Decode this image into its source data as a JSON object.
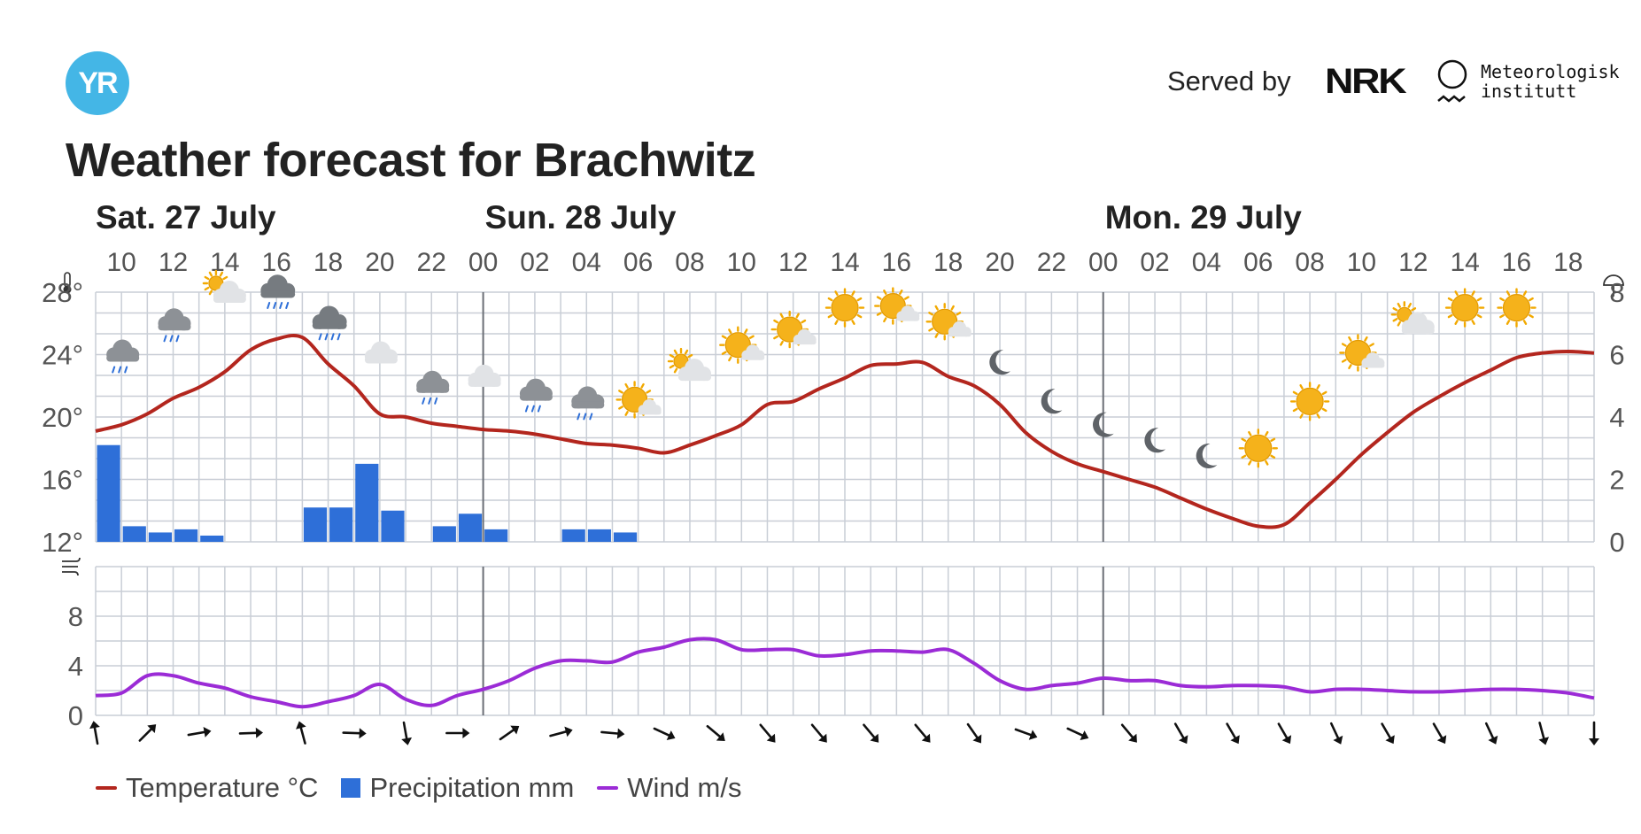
{
  "header": {
    "logo_text": "YR",
    "served_by": "Served by",
    "nrk": "NRK",
    "met_line1": "Meteorologisk",
    "met_line2": "institutt",
    "title": "Weather forecast for Brachwitz"
  },
  "colors": {
    "temperature": "#b3261e",
    "precipitation": "#2e6fd8",
    "wind": "#9b2bd6",
    "grid": "#c9ced6",
    "day_divider": "#6b6f76"
  },
  "legend": {
    "temperature": "Temperature °C",
    "precipitation": "Precipitation mm",
    "wind": "Wind m/s"
  },
  "chart_data": {
    "type": "line",
    "days": [
      {
        "label": "Sat. 27 July",
        "start_hour": 9
      },
      {
        "label": "Sun. 28 July",
        "start_hour": 24
      },
      {
        "label": "Mon. 29 July",
        "start_hour": 48
      }
    ],
    "hour_range": [
      9,
      67
    ],
    "hour_tick_labels": [
      "10",
      "12",
      "14",
      "16",
      "18",
      "20",
      "22",
      "00",
      "02",
      "04",
      "06",
      "08",
      "10",
      "12",
      "14",
      "16",
      "18",
      "20",
      "22",
      "00",
      "02",
      "04",
      "06",
      "08",
      "10",
      "12",
      "14",
      "16",
      "18"
    ],
    "temperature": {
      "ylim": [
        12,
        28
      ],
      "tick_labels": [
        "28°",
        "24°",
        "20°",
        "16°",
        "12°"
      ],
      "tick_values": [
        28,
        24,
        20,
        16,
        12
      ],
      "x": [
        9,
        10,
        11,
        12,
        13,
        14,
        15,
        16,
        17,
        18,
        19,
        20,
        21,
        22,
        23,
        24,
        25,
        26,
        27,
        28,
        29,
        30,
        31,
        32,
        33,
        34,
        35,
        36,
        37,
        38,
        39,
        40,
        41,
        42,
        43,
        44,
        45,
        46,
        47,
        48,
        49,
        50,
        51,
        52,
        53,
        54,
        55,
        56,
        57,
        58,
        59,
        60,
        61,
        62,
        63,
        64,
        65,
        66,
        67
      ],
      "values": [
        19.1,
        19.5,
        20.2,
        21.2,
        21.9,
        22.9,
        24.3,
        25.0,
        25.1,
        23.4,
        22.0,
        20.2,
        20.0,
        19.6,
        19.4,
        19.2,
        19.1,
        18.9,
        18.6,
        18.3,
        18.2,
        18.0,
        17.7,
        18.2,
        18.8,
        19.5,
        20.8,
        21.0,
        21.8,
        22.5,
        23.3,
        23.4,
        23.5,
        22.6,
        22.0,
        20.8,
        19.0,
        17.8,
        17.0,
        16.5,
        16.0,
        15.5,
        14.8,
        14.1,
        13.5,
        13.0,
        13.1,
        14.5,
        16.0,
        17.6,
        19.0,
        20.3,
        21.3,
        22.2,
        23.0,
        23.8,
        24.1,
        24.2,
        24.1
      ]
    },
    "precipitation": {
      "ylim": [
        0,
        8
      ],
      "tick_labels": [
        "8",
        "6",
        "4",
        "2",
        "0"
      ],
      "tick_values": [
        8,
        6,
        4,
        2,
        0
      ],
      "bars": [
        {
          "hour": 9,
          "value": 3.1
        },
        {
          "hour": 10,
          "value": 0.5
        },
        {
          "hour": 11,
          "value": 0.3
        },
        {
          "hour": 12,
          "value": 0.4
        },
        {
          "hour": 13,
          "value": 0.2
        },
        {
          "hour": 17,
          "value": 1.1
        },
        {
          "hour": 18,
          "value": 1.1
        },
        {
          "hour": 19,
          "value": 2.5
        },
        {
          "hour": 20,
          "value": 1.0
        },
        {
          "hour": 22,
          "value": 0.5
        },
        {
          "hour": 23,
          "value": 0.9
        },
        {
          "hour": 24,
          "value": 0.4
        },
        {
          "hour": 27,
          "value": 0.4
        },
        {
          "hour": 28,
          "value": 0.4
        },
        {
          "hour": 29,
          "value": 0.3
        }
      ]
    },
    "wind": {
      "ylim": [
        0,
        12
      ],
      "tick_labels": [
        "8",
        "4",
        "0"
      ],
      "tick_values": [
        8,
        4,
        0
      ],
      "x": [
        9,
        10,
        11,
        12,
        13,
        14,
        15,
        16,
        17,
        18,
        19,
        20,
        21,
        22,
        23,
        24,
        25,
        26,
        27,
        28,
        29,
        30,
        31,
        32,
        33,
        34,
        35,
        36,
        37,
        38,
        39,
        40,
        41,
        42,
        43,
        44,
        45,
        46,
        47,
        48,
        49,
        50,
        51,
        52,
        53,
        54,
        55,
        56,
        57,
        58,
        59,
        60,
        61,
        62,
        63,
        64,
        65,
        66,
        67
      ],
      "values": [
        1.6,
        1.8,
        3.2,
        3.2,
        2.6,
        2.2,
        1.5,
        1.1,
        0.7,
        1.1,
        1.6,
        2.5,
        1.3,
        0.8,
        1.6,
        2.1,
        2.8,
        3.8,
        4.4,
        4.4,
        4.3,
        5.1,
        5.5,
        6.1,
        6.1,
        5.3,
        5.3,
        5.3,
        4.8,
        4.9,
        5.2,
        5.2,
        5.1,
        5.3,
        4.2,
        2.8,
        2.1,
        2.4,
        2.6,
        3.0,
        2.8,
        2.8,
        2.4,
        2.3,
        2.4,
        2.4,
        2.3,
        1.9,
        2.1,
        2.1,
        2.0,
        1.9,
        1.9,
        2.0,
        2.1,
        2.1,
        2.0,
        1.8,
        1.4
      ]
    },
    "weather_symbols": [
      {
        "hour": 10,
        "temp": 24,
        "icon": "cloud-rain-icon"
      },
      {
        "hour": 12,
        "temp": 26,
        "icon": "cloud-rain-icon"
      },
      {
        "hour": 14,
        "temp": 28,
        "icon": "partly-cloudy-icon"
      },
      {
        "hour": 16,
        "temp": 28,
        "icon": "cloud-heavy-rain-icon"
      },
      {
        "hour": 18,
        "temp": 26,
        "icon": "cloud-heavy-rain-icon"
      },
      {
        "hour": 20,
        "temp": 24,
        "icon": "cloud-icon"
      },
      {
        "hour": 22,
        "temp": 22,
        "icon": "cloud-rain-icon"
      },
      {
        "hour": 24,
        "temp": 22.5,
        "icon": "cloud-icon"
      },
      {
        "hour": 26,
        "temp": 21.5,
        "icon": "cloud-rain-icon"
      },
      {
        "hour": 28,
        "temp": 21,
        "icon": "cloud-rain-icon"
      },
      {
        "hour": 30,
        "temp": 21,
        "icon": "sun-cloud-icon"
      },
      {
        "hour": 32,
        "temp": 23,
        "icon": "partly-cloudy-icon"
      },
      {
        "hour": 34,
        "temp": 24.5,
        "icon": "sun-cloud-icon"
      },
      {
        "hour": 36,
        "temp": 25.5,
        "icon": "sun-cloud-icon"
      },
      {
        "hour": 38,
        "temp": 27,
        "icon": "sun-icon"
      },
      {
        "hour": 40,
        "temp": 27,
        "icon": "sun-cloud-icon"
      },
      {
        "hour": 42,
        "temp": 26,
        "icon": "sun-cloud-icon"
      },
      {
        "hour": 44,
        "temp": 23.5,
        "icon": "moon-icon"
      },
      {
        "hour": 46,
        "temp": 21,
        "icon": "moon-icon"
      },
      {
        "hour": 48,
        "temp": 19.5,
        "icon": "moon-icon"
      },
      {
        "hour": 50,
        "temp": 18.5,
        "icon": "moon-icon"
      },
      {
        "hour": 52,
        "temp": 17.5,
        "icon": "moon-icon"
      },
      {
        "hour": 54,
        "temp": 18,
        "icon": "sun-icon"
      },
      {
        "hour": 56,
        "temp": 21,
        "icon": "sun-icon"
      },
      {
        "hour": 58,
        "temp": 24,
        "icon": "sun-cloud-icon"
      },
      {
        "hour": 60,
        "temp": 26,
        "icon": "partly-cloudy-icon"
      },
      {
        "hour": 62,
        "temp": 27,
        "icon": "sun-icon"
      },
      {
        "hour": 64,
        "temp": 27,
        "icon": "sun-icon"
      }
    ],
    "wind_arrows": [
      {
        "hour": 9,
        "angle": -10
      },
      {
        "hour": 11,
        "angle": 45
      },
      {
        "hour": 13,
        "angle": 80
      },
      {
        "hour": 15,
        "angle": 88
      },
      {
        "hour": 17,
        "angle": -15
      },
      {
        "hour": 19,
        "angle": 92
      },
      {
        "hour": 21,
        "angle": 170
      },
      {
        "hour": 23,
        "angle": 90
      },
      {
        "hour": 25,
        "angle": 55
      },
      {
        "hour": 27,
        "angle": 75
      },
      {
        "hour": 29,
        "angle": 95
      },
      {
        "hour": 31,
        "angle": 115
      },
      {
        "hour": 33,
        "angle": 130
      },
      {
        "hour": 35,
        "angle": 140
      },
      {
        "hour": 37,
        "angle": 140
      },
      {
        "hour": 39,
        "angle": 140
      },
      {
        "hour": 41,
        "angle": 140
      },
      {
        "hour": 43,
        "angle": 145
      },
      {
        "hour": 45,
        "angle": 110
      },
      {
        "hour": 47,
        "angle": 115
      },
      {
        "hour": 49,
        "angle": 140
      },
      {
        "hour": 51,
        "angle": 150
      },
      {
        "hour": 53,
        "angle": 150
      },
      {
        "hour": 55,
        "angle": 150
      },
      {
        "hour": 57,
        "angle": 155
      },
      {
        "hour": 59,
        "angle": 150
      },
      {
        "hour": 61,
        "angle": 150
      },
      {
        "hour": 63,
        "angle": 155
      },
      {
        "hour": 65,
        "angle": 165
      },
      {
        "hour": 67,
        "angle": 180
      }
    ]
  }
}
